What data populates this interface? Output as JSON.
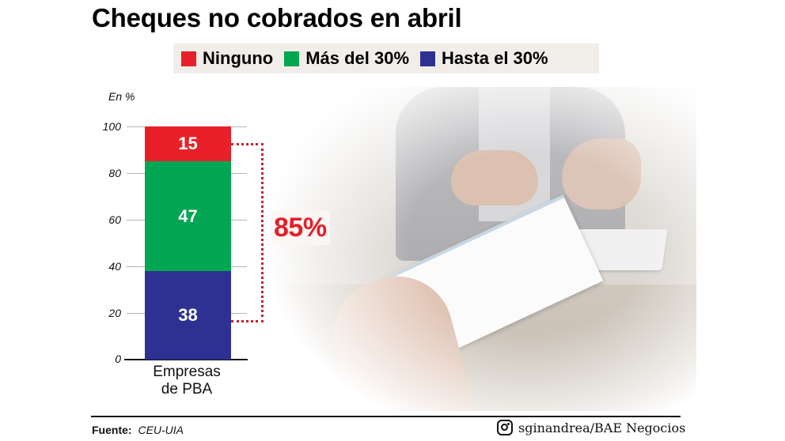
{
  "title": "Cheques no cobrados en abril",
  "legend": [
    {
      "label": "Ninguno",
      "color": "#e8202a"
    },
    {
      "label": "Más del 30%",
      "color": "#00a651"
    },
    {
      "label": "Hasta el 30%",
      "color": "#2e3192"
    }
  ],
  "axis": {
    "unit_label": "En %",
    "ticks": [
      "100",
      "80",
      "60",
      "40",
      "20",
      "0"
    ]
  },
  "annotation": {
    "label": "85%",
    "color": "#e2202b"
  },
  "footer": {
    "source_label": "Fuente:",
    "source_value": "CEU-UIA",
    "credit": "sginandrea/BAE Negocios",
    "credit_icon": "instagram-icon"
  },
  "chart_data": {
    "type": "bar",
    "stacked": true,
    "title": "Cheques no cobrados en abril",
    "xlabel": "",
    "ylabel": "En %",
    "ylim": [
      0,
      100
    ],
    "yticks": [
      0,
      20,
      40,
      60,
      80,
      100
    ],
    "grid": true,
    "legend_position": "top",
    "categories": [
      "Empresas de PBA"
    ],
    "series": [
      {
        "name": "Hasta el 30%",
        "values": [
          38
        ],
        "color": "#2e3192"
      },
      {
        "name": "Más del 30%",
        "values": [
          47
        ],
        "color": "#00a651"
      },
      {
        "name": "Ninguno",
        "values": [
          15
        ],
        "color": "#e8202a"
      }
    ],
    "annotations": [
      {
        "text": "85%",
        "bracket_covers": [
          "Hasta el 30%",
          "Más del 30%"
        ]
      }
    ],
    "source": "CEU-UIA"
  }
}
